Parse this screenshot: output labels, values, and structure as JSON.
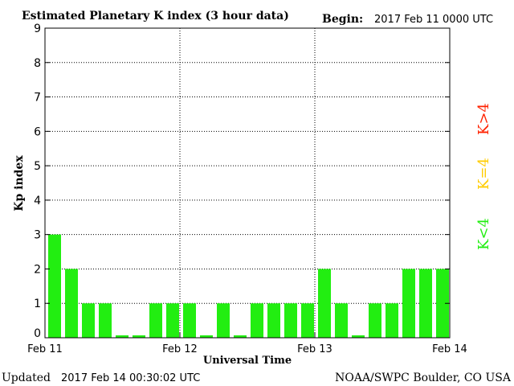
{
  "chart_data": {
    "type": "bar",
    "title": "Estimated Planetary K index (3 hour data)",
    "begin_label": "Begin:",
    "begin_value": "2017 Feb 11 0000 UTC",
    "xlabel": "Universal Time",
    "ylabel": "Kp index",
    "ylim": [
      0,
      9
    ],
    "yticks": [
      "0",
      "1",
      "2",
      "3",
      "4",
      "5",
      "6",
      "7",
      "8",
      "9"
    ],
    "xticks": [
      "Feb 11",
      "Feb 12",
      "Feb 13",
      "Feb 14"
    ],
    "grid": true,
    "values": [
      3,
      2,
      1,
      1,
      0.07,
      0.07,
      1,
      1,
      1,
      0.07,
      1,
      0.07,
      1,
      1,
      1,
      1,
      2,
      1,
      0.07,
      1,
      1,
      2,
      2,
      2
    ],
    "legend": [
      {
        "label": "K>4",
        "color": "#ff2200"
      },
      {
        "label": "K=4",
        "color": "#ffcc00"
      },
      {
        "label": "K<4",
        "color": "#22ee11"
      }
    ],
    "bar_color": "#22ee11"
  },
  "footer": {
    "updated_label": "Updated",
    "updated_value": "2017 Feb 14 00:30:02 UTC",
    "source": "NOAA/SWPC Boulder, CO USA"
  }
}
